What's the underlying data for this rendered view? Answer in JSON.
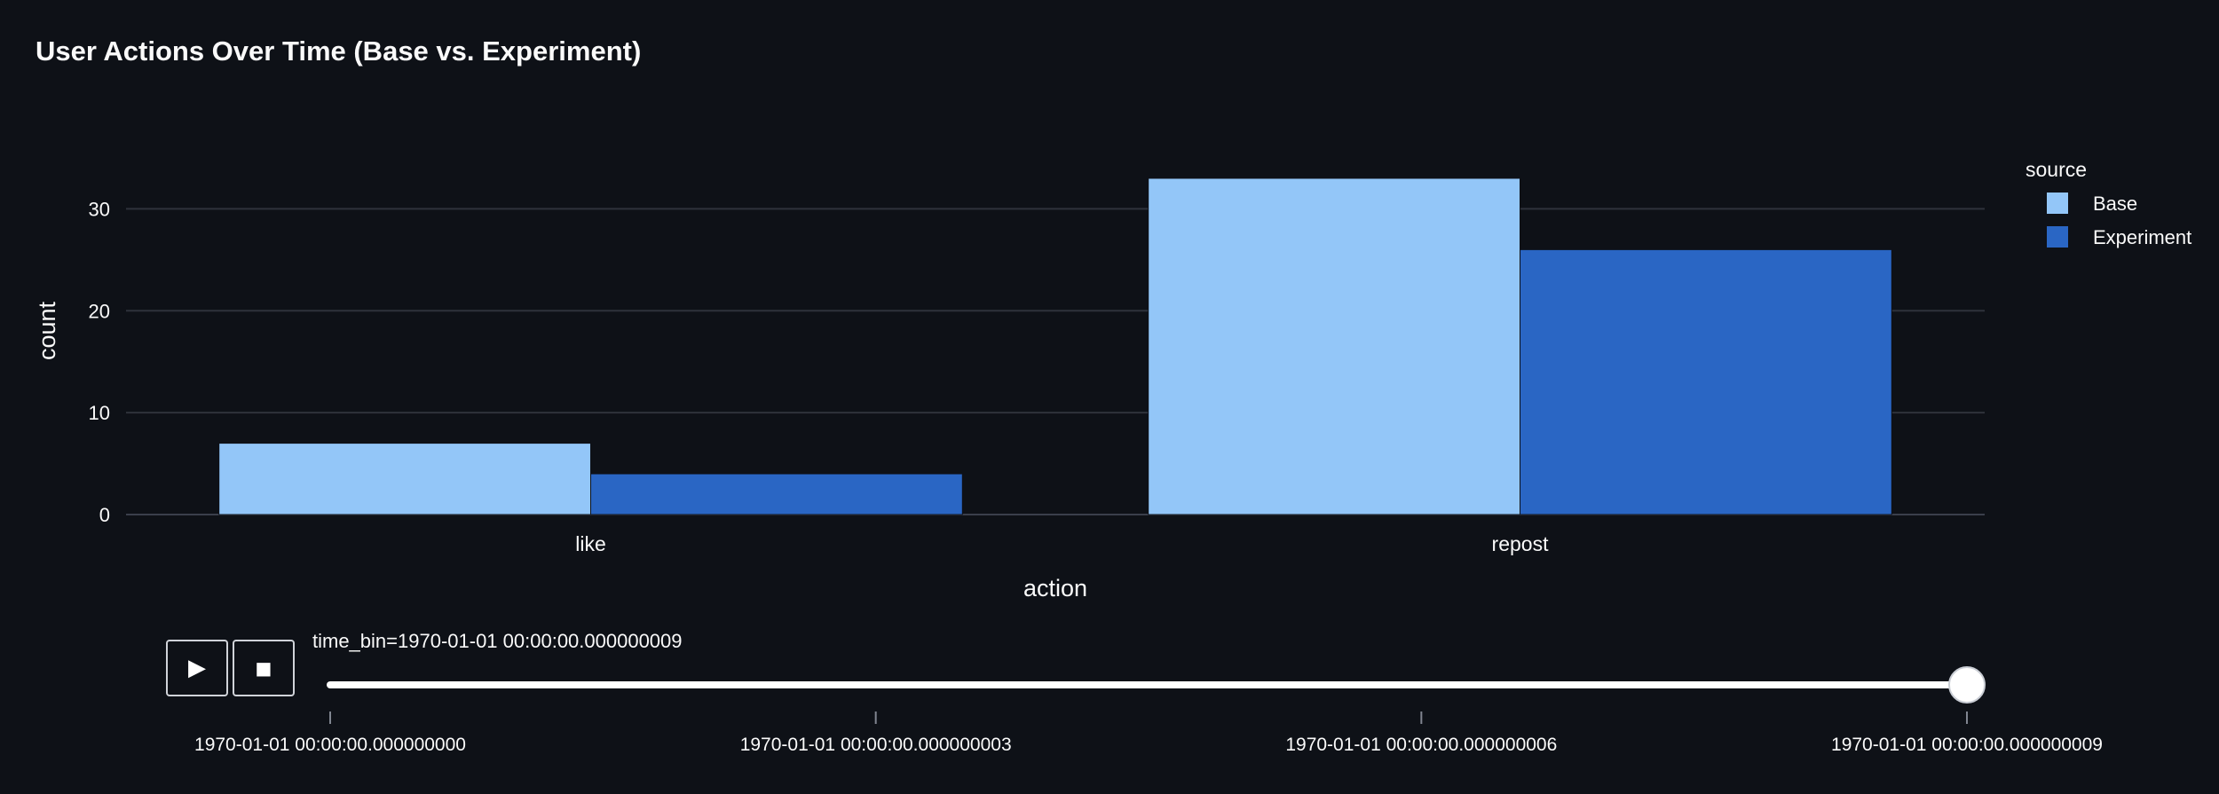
{
  "chart_data": {
    "type": "bar",
    "title": "User Actions Over Time (Base vs. Experiment)",
    "xlabel": "action",
    "ylabel": "count",
    "categories": [
      "like",
      "repost"
    ],
    "series": [
      {
        "name": "Base",
        "values": [
          7,
          33
        ],
        "color": "#93c6f8"
      },
      {
        "name": "Experiment",
        "values": [
          4,
          26
        ],
        "color": "#2a66c4"
      }
    ],
    "ylim": [
      0,
      35
    ],
    "yticks": [
      0,
      10,
      20,
      30
    ],
    "grid": true,
    "legend": {
      "title": "source",
      "position": "right"
    }
  },
  "animation": {
    "play_icon": "play-icon",
    "stop_icon": "stop-icon",
    "current_label": "time_bin=1970-01-01 00:00:00.000000009",
    "slider_value_fraction": 1.0,
    "slider_ticks": [
      "1970-01-01 00:00:00.000000000",
      "1970-01-01 00:00:00.000000003",
      "1970-01-01 00:00:00.000000006",
      "1970-01-01 00:00:00.000000009"
    ]
  }
}
